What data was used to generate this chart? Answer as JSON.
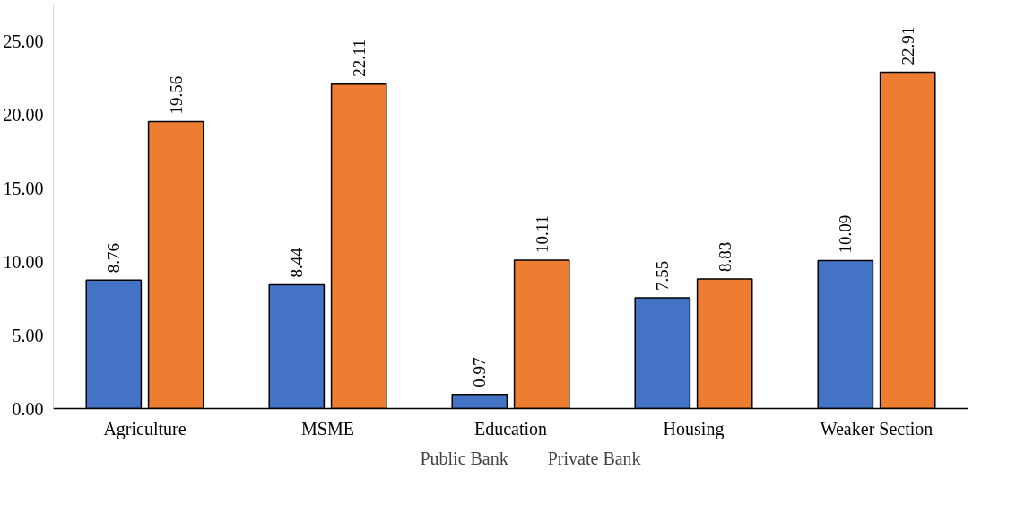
{
  "chart_data": {
    "type": "bar",
    "categories": [
      "Agriculture",
      "MSME",
      "Education",
      "Housing",
      "Weaker Section"
    ],
    "series": [
      {
        "name": "Public Bank",
        "color": "#4472c4",
        "values": [
          8.76,
          8.44,
          0.97,
          7.55,
          10.09
        ]
      },
      {
        "name": "Private Bank",
        "color": "#ed7d31",
        "values": [
          19.56,
          22.11,
          10.11,
          8.83,
          22.91
        ]
      }
    ],
    "ylim": [
      0,
      27.5
    ],
    "yticks": [
      {
        "value": 0,
        "label": "0.00"
      },
      {
        "value": 5,
        "label": "5.00"
      },
      {
        "value": 10,
        "label": "10.00"
      },
      {
        "value": 15,
        "label": "15.00"
      },
      {
        "value": 20,
        "label": "20.00"
      },
      {
        "value": 25,
        "label": "25.00"
      }
    ],
    "data_labels": true,
    "grid": false,
    "legend": "bottom"
  }
}
